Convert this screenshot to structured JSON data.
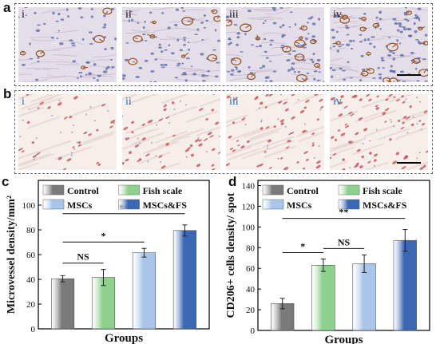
{
  "panels": {
    "a": {
      "letter": "a",
      "tiles": [
        "i",
        "ii",
        "iii",
        "iv"
      ],
      "label_color": "#111111",
      "stain": "CD31 immunohistochemistry (brown vessels, blue nuclei)"
    },
    "b": {
      "letter": "b",
      "tiles": [
        "i",
        "ii",
        "iii",
        "iv"
      ],
      "label_color": "#2f6fb5",
      "stain": "CD206 immunohistochemistry (red cells, pale background)"
    },
    "c": {
      "letter": "c"
    },
    "d": {
      "letter": "d"
    }
  },
  "colors": {
    "control": "#7a7a7a",
    "fish_scale": "#8fd08f",
    "mscs": "#a9c6ea",
    "mscs_fs": "#3b67b3"
  },
  "chart_data": [
    {
      "type": "bar",
      "categories": [
        "Control",
        "Fish scale",
        "MSCs",
        "MSCs&FS"
      ],
      "values": [
        40.5,
        41.5,
        61.5,
        79.5
      ],
      "errors": [
        2.5,
        6.5,
        3.5,
        4.5
      ],
      "xlabel": "Groups",
      "ylabel": "Microvessel density/mm²",
      "ylim": [
        0,
        120
      ],
      "yticks": [
        0,
        20,
        40,
        60,
        80,
        100
      ],
      "legend": [
        "Control",
        "Fish scale",
        "MSCs",
        "MSCs&FS"
      ],
      "legend_position": "top",
      "significance": [
        {
          "from": 0,
          "to": 1,
          "label": "NS"
        },
        {
          "from": 0,
          "to": 2,
          "label": "*"
        },
        {
          "from": 0,
          "to": 3,
          "label": "**"
        }
      ]
    },
    {
      "type": "bar",
      "categories": [
        "Control",
        "Fish scale",
        "MSCs",
        "MSCs&FS"
      ],
      "values": [
        26,
        63,
        64.5,
        87
      ],
      "errors": [
        5,
        6,
        8.5,
        10.5
      ],
      "xlabel": "Groups",
      "ylabel": "CD206+ cells density/ spot",
      "ylim": [
        0,
        145
      ],
      "yticks": [
        0,
        20,
        40,
        60,
        80,
        100,
        120,
        140
      ],
      "legend": [
        "Control",
        "Fish scale",
        "MSCs",
        "MSCs&FS"
      ],
      "legend_position": "top",
      "significance": [
        {
          "from": 0,
          "to": 1,
          "label": "*"
        },
        {
          "from": 1,
          "to": 2,
          "label": "NS"
        },
        {
          "from": 0,
          "to": 3,
          "label": "**"
        }
      ]
    }
  ]
}
